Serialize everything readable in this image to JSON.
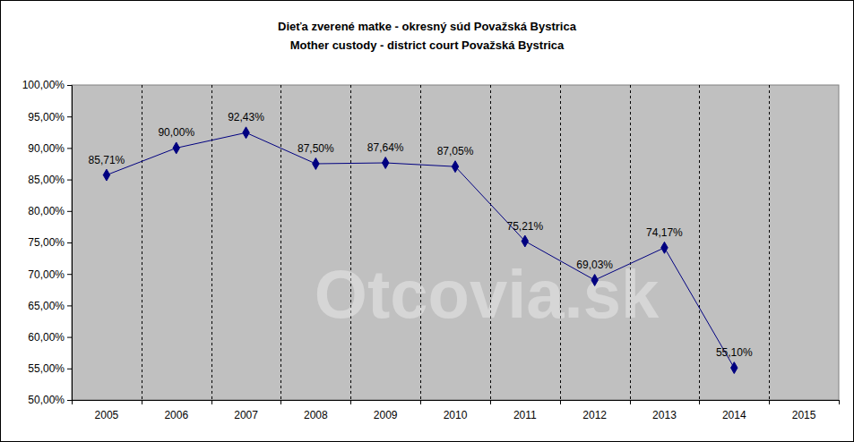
{
  "chart_data": {
    "type": "line",
    "title": "Dieťa zverené matke - okresný súd Považská Bystrica",
    "subtitle": "Mother custody - district court Považská Bystrica",
    "annotations": [
      "Otcovia.sk"
    ],
    "categories": [
      "2005",
      "2006",
      "2007",
      "2008",
      "2009",
      "2010",
      "2011",
      "2012",
      "2013",
      "2014",
      "2015"
    ],
    "values": [
      85.71,
      90.0,
      92.43,
      87.5,
      87.64,
      87.05,
      75.21,
      69.03,
      74.17,
      55.1,
      null
    ],
    "value_labels": [
      "85,71%",
      "90,00%",
      "92,43%",
      "87,50%",
      "87,64%",
      "87,05%",
      "75,21%",
      "69,03%",
      "74,17%",
      "55,10%",
      null
    ],
    "color": "#000080",
    "marker": "diamond",
    "line_style": "solid",
    "data_labels": true,
    "grid": true,
    "ylim": [
      50,
      100
    ],
    "yticks": [
      {
        "value": 50,
        "label": "50,00%"
      },
      {
        "value": 55,
        "label": "55,00%"
      },
      {
        "value": 60,
        "label": "60,00%"
      },
      {
        "value": 65,
        "label": "65,00%"
      },
      {
        "value": 70,
        "label": "70,00%"
      },
      {
        "value": 75,
        "label": "75,00%"
      },
      {
        "value": 80,
        "label": "80,00%"
      },
      {
        "value": 85,
        "label": "85,00%"
      },
      {
        "value": 90,
        "label": "90,00%"
      },
      {
        "value": 95,
        "label": "95,00%"
      },
      {
        "value": 100,
        "label": "100,00%"
      }
    ]
  }
}
